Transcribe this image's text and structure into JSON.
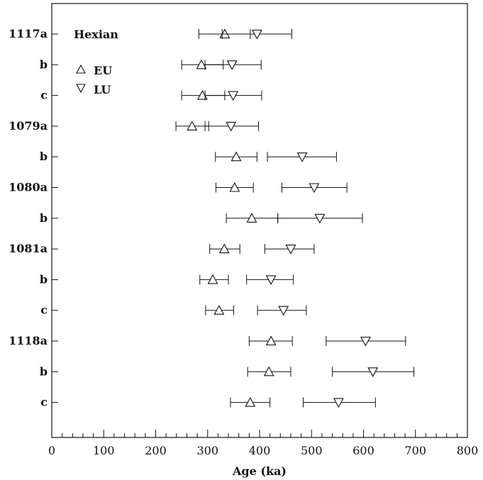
{
  "chart_data": {
    "type": "scatter",
    "title": "",
    "xlabel": "Age (ka)",
    "ylabel": "",
    "xlim": [
      0,
      800
    ],
    "xticks": [
      0,
      100,
      200,
      300,
      400,
      500,
      600,
      700,
      800
    ],
    "x_minor_step": 20,
    "grid": false,
    "annotation": "Hexian",
    "legend": {
      "placement": "top-left",
      "entries": [
        {
          "label": "EU",
          "marker": "triangle-up"
        },
        {
          "label": "LU",
          "marker": "triangle-down"
        }
      ]
    },
    "samples": [
      "1117a",
      "b",
      "c",
      "1079a",
      "b",
      "1080a",
      "b",
      "1081a",
      "b",
      "c",
      "1118a",
      "b",
      "c"
    ],
    "series": [
      {
        "name": "EU",
        "marker": "triangle-up",
        "values": [
          333,
          288,
          290,
          270,
          355,
          352,
          385,
          332,
          310,
          322,
          422,
          418,
          382
        ],
        "err_low": [
          283,
          250,
          250,
          239,
          315,
          316,
          336,
          304,
          285,
          296,
          380,
          377,
          344
        ],
        "err_high": [
          382,
          330,
          333,
          302,
          395,
          388,
          435,
          362,
          340,
          350,
          463,
          460,
          420
        ]
      },
      {
        "name": "LU",
        "marker": "triangle-down",
        "values": [
          395,
          347,
          349,
          345,
          482,
          505,
          516,
          460,
          422,
          446,
          604,
          618,
          552
        ],
        "err_low": [
          328,
          295,
          295,
          295,
          415,
          443,
          435,
          410,
          375,
          396,
          528,
          540,
          484
        ],
        "err_high": [
          462,
          403,
          404,
          398,
          548,
          568,
          598,
          505,
          465,
          490,
          681,
          697,
          623
        ]
      }
    ]
  }
}
